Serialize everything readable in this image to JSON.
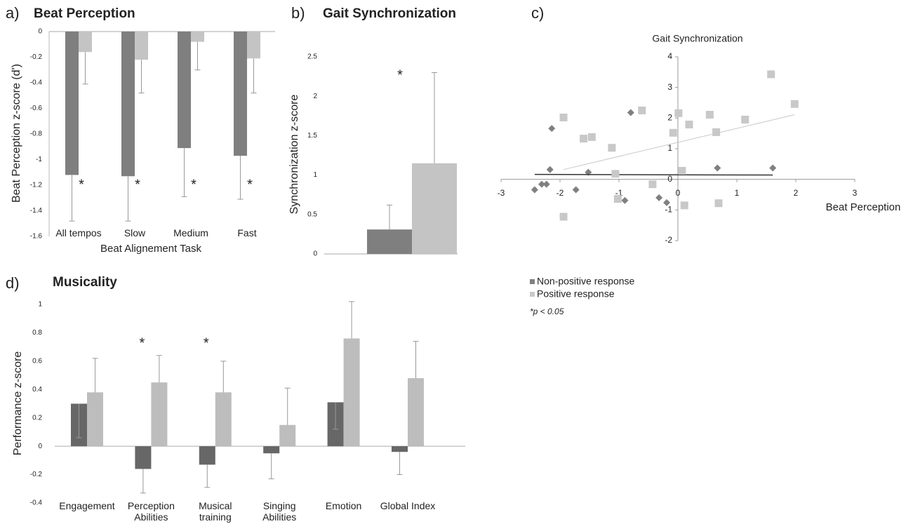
{
  "chart_data": [
    {
      "type": "bar",
      "panel": "a)",
      "title": "Beat Perception",
      "ylabel": "Beat Perception z-score (d')",
      "xlabel": "Beat Alignement Task",
      "categories": [
        "All tempos",
        "Slow",
        "Medium",
        "Fast"
      ],
      "series": [
        {
          "color": "#7f7f7f",
          "values": [
            -1.12,
            -1.13,
            -0.91,
            -0.97
          ],
          "errors": [
            0.36,
            0.35,
            0.38,
            0.34
          ],
          "error_direction": "down"
        },
        {
          "color": "#c4c4c4",
          "values": [
            -0.16,
            -0.22,
            -0.08,
            -0.21
          ],
          "errors": [
            0.25,
            0.26,
            0.22,
            0.27
          ],
          "error_direction": "down"
        }
      ],
      "significance": [
        "*",
        "*",
        "*",
        "*"
      ],
      "ylim": [
        -1.6,
        0
      ],
      "yticks": [
        0,
        -0.2,
        -0.4,
        -0.6,
        -0.8,
        -1,
        -1.2,
        -1.4,
        -1.6
      ]
    },
    {
      "type": "bar",
      "panel": "b)",
      "title": "Gait Synchronization",
      "ylabel": "Synchronization z-score",
      "categories": [
        null
      ],
      "series": [
        {
          "color": "#7f7f7f",
          "values": [
            0.31
          ],
          "errors": [
            0.31
          ],
          "error_direction": "up"
        },
        {
          "color": "#c4c4c4",
          "values": [
            1.15
          ],
          "errors": [
            1.15
          ],
          "error_direction": "up"
        }
      ],
      "significance": [
        "*"
      ],
      "ylim": [
        0,
        2.5
      ],
      "yticks": [
        0,
        0.5,
        1,
        1.5,
        2,
        2.5
      ]
    },
    {
      "type": "scatter",
      "panel": "c)",
      "ylabel": "Gait Synchronization",
      "xlabel": "Beat Perception",
      "series": [
        {
          "name": "Non-positive response",
          "color": "#808080",
          "marker": "diamond",
          "trend_color": "#333333",
          "x": [
            -2.14,
            -2.17,
            -2.43,
            -2.31,
            -2.23,
            -1.73,
            -1.52,
            -0.8,
            -0.9,
            -0.32,
            -0.19,
            0.67,
            1.61
          ],
          "values": [
            1.66,
            0.32,
            -0.34,
            -0.16,
            -0.16,
            -0.34,
            0.23,
            2.18,
            -0.69,
            -0.6,
            -0.76,
            0.37,
            0.37
          ],
          "trend": [
            [
              -2.43,
              0.16
            ],
            [
              1.61,
              0.14
            ]
          ]
        },
        {
          "name": "Positive response",
          "color": "#c8c8c8",
          "marker": "square",
          "trend_color": "#c8c8c8",
          "x": [
            -1.94,
            -1.94,
            -1.6,
            -1.46,
            -1.12,
            -1.06,
            -1.02,
            -0.61,
            -0.43,
            -0.08,
            0.01,
            0.07,
            0.11,
            0.19,
            0.54,
            0.65,
            0.69,
            1.14,
            1.58,
            1.98
          ],
          "values": [
            2.02,
            -1.22,
            1.33,
            1.38,
            1.03,
            0.18,
            -0.64,
            2.25,
            -0.16,
            1.52,
            2.16,
            0.28,
            -0.85,
            1.79,
            2.11,
            1.54,
            -0.78,
            1.95,
            3.43,
            2.46
          ],
          "trend": [
            [
              -1.94,
              0.32
            ],
            [
              1.98,
              2.11
            ]
          ]
        }
      ],
      "xlim": [
        -3,
        3
      ],
      "xticks": [
        -3,
        -2,
        -1,
        0,
        1,
        2,
        3
      ],
      "ylim": [
        -2,
        4
      ],
      "yticks": [
        -2,
        -1,
        0,
        1,
        2,
        3,
        4
      ],
      "note": "*p < 0.05"
    },
    {
      "type": "bar",
      "panel": "d)",
      "title": "Musicality",
      "ylabel": "Performance  z-score",
      "categories": [
        "Engagement",
        "Perception Abilities",
        "Musical training",
        "Singing Abilities",
        "Emotion",
        "Global Index"
      ],
      "series": [
        {
          "color": "#676767",
          "values": [
            0.3,
            -0.16,
            -0.13,
            -0.05,
            0.31,
            -0.04
          ],
          "errors": [
            0.24,
            0.17,
            0.16,
            0.18,
            0.19,
            0.16
          ],
          "error_direction": "down"
        },
        {
          "color": "#bdbdbd",
          "values": [
            0.38,
            0.45,
            0.38,
            0.15,
            0.76,
            0.48
          ],
          "errors": [
            0.24,
            0.19,
            0.22,
            0.26,
            0.26,
            0.26
          ],
          "error_direction": "up"
        }
      ],
      "significance": [
        null,
        "*",
        "*",
        null,
        null,
        null
      ],
      "ylim": [
        -0.4,
        1
      ],
      "yticks": [
        -0.4,
        -0.2,
        0,
        0.2,
        0.4,
        0.6,
        0.8,
        1
      ]
    }
  ]
}
